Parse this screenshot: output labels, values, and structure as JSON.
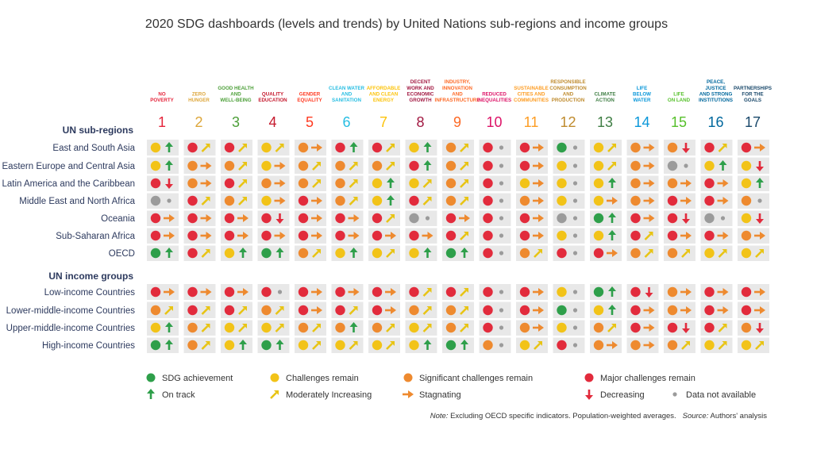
{
  "title": "2020 SDG dashboards (levels and trends) by United Nations sub-regions and income groups",
  "colors": {
    "green": "#2e9f4a",
    "yellow": "#f2c318",
    "orange": "#ee8a2f",
    "red": "#e22b3c",
    "grey": "#9b9b9b",
    "arrow_yellow": "#e8c414",
    "arrow_orange": "#ee8a2f",
    "band": "#e8e8e8"
  },
  "chart_data": {
    "type": "table",
    "title": "2020 SDG dashboards (levels and trends) by United Nations sub-regions and income groups",
    "goals": [
      {
        "num": "1",
        "label": [
          "NO",
          "POVERTY"
        ],
        "color": "#e5243b"
      },
      {
        "num": "2",
        "label": [
          "ZERO",
          "HUNGER"
        ],
        "color": "#dda63a"
      },
      {
        "num": "3",
        "label": [
          "GOOD HEALTH",
          "AND",
          "WELL-BEING"
        ],
        "color": "#4c9f38"
      },
      {
        "num": "4",
        "label": [
          "QUALITY",
          "EDUCATION"
        ],
        "color": "#c5192d"
      },
      {
        "num": "5",
        "label": [
          "GENDER",
          "EQUALITY"
        ],
        "color": "#ff3a21"
      },
      {
        "num": "6",
        "label": [
          "CLEAN WATER",
          "AND",
          "SANITATION"
        ],
        "color": "#26bde2"
      },
      {
        "num": "7",
        "label": [
          "AFFORDABLE",
          "AND CLEAN",
          "ENERGY"
        ],
        "color": "#fcc30b"
      },
      {
        "num": "8",
        "label": [
          "DECENT",
          "WORK AND",
          "ECONOMIC",
          "GROWTH"
        ],
        "color": "#a21942"
      },
      {
        "num": "9",
        "label": [
          "INDUSTRY,",
          "INNOVATION",
          "AND",
          "INFRASTRUCTURE"
        ],
        "color": "#fd6925"
      },
      {
        "num": "10",
        "label": [
          "REDUCED",
          "INEQUALITIES"
        ],
        "color": "#dd1367"
      },
      {
        "num": "11",
        "label": [
          "SUSTAINABLE",
          "CITIES AND",
          "COMMUNITIES"
        ],
        "color": "#fd9d24"
      },
      {
        "num": "12",
        "label": [
          "RESPONSIBLE",
          "CONSUMPTION",
          "AND",
          "PRODUCTION"
        ],
        "color": "#bf8b2e"
      },
      {
        "num": "13",
        "label": [
          "CLIMATE",
          "ACTION"
        ],
        "color": "#3f7e44"
      },
      {
        "num": "14",
        "label": [
          "LIFE",
          "BELOW",
          "WATER"
        ],
        "color": "#0a97d9"
      },
      {
        "num": "15",
        "label": [
          "LIFE",
          "ON LAND"
        ],
        "color": "#56c02b"
      },
      {
        "num": "16",
        "label": [
          "PEACE,",
          "JUSTICE",
          "AND STRONG",
          "INSTITUTIONS"
        ],
        "color": "#00689d"
      },
      {
        "num": "17",
        "label": [
          "PARTNERSHIPS",
          "FOR THE",
          "GOALS"
        ],
        "color": "#19486a"
      }
    ],
    "sections": [
      {
        "title": "UN sub-regions",
        "rows": [
          {
            "label": "East and South Asia",
            "cells": [
              "yu",
              "rm",
              "rm",
              "ym",
              "os",
              "ru",
              "rm",
              "yu",
              "om",
              "rn",
              "rs",
              "gn",
              "ym",
              "os",
              "od",
              "rm",
              "rs"
            ]
          },
          {
            "label": "Eastern Europe and Central Asia",
            "cells": [
              "yu",
              "os",
              "om",
              "ys",
              "om",
              "om",
              "om",
              "ru",
              "om",
              "rn",
              "rs",
              "yn",
              "ym",
              "os",
              "xn",
              "yu",
              "yd"
            ]
          },
          {
            "label": "Latin America and the Caribbean",
            "cells": [
              "rd",
              "os",
              "rm",
              "os",
              "om",
              "om",
              "yu",
              "ym",
              "om",
              "rn",
              "ys",
              "yn",
              "yu",
              "os",
              "os",
              "rs",
              "yu"
            ]
          },
          {
            "label": "Middle East and North Africa",
            "cells": [
              "xn",
              "rm",
              "om",
              "ys",
              "rs",
              "om",
              "yu",
              "rm",
              "om",
              "rn",
              "os",
              "yn",
              "ys",
              "os",
              "rs",
              "rs",
              "on"
            ]
          },
          {
            "label": "Oceania",
            "cells": [
              "rs",
              "rs",
              "rs",
              "rd",
              "rs",
              "rs",
              "rm",
              "xn",
              "rs",
              "rn",
              "rs",
              "xn",
              "gu",
              "rs",
              "rd",
              "xn",
              "yd"
            ]
          },
          {
            "label": "Sub-Saharan Africa",
            "cells": [
              "rs",
              "rs",
              "rs",
              "rs",
              "rs",
              "rs",
              "rs",
              "rs",
              "rm",
              "rn",
              "rs",
              "yn",
              "yu",
              "rm",
              "rs",
              "rs",
              "os"
            ]
          },
          {
            "label": "OECD",
            "cells": [
              "gu",
              "rm",
              "yu",
              "gu",
              "om",
              "yu",
              "ym",
              "yu",
              "gu",
              "rn",
              "om",
              "rn",
              "rs",
              "om",
              "om",
              "ym",
              "ym"
            ]
          }
        ]
      },
      {
        "title": "UN income groups",
        "rows": [
          {
            "label": "Low-income Countries",
            "cells": [
              "rs",
              "rs",
              "rs",
              "rn",
              "rs",
              "rs",
              "rs",
              "rm",
              "rm",
              "rn",
              "rs",
              "yn",
              "gu",
              "rd",
              "os",
              "rs",
              "rs"
            ]
          },
          {
            "label": "Lower-middle-income Countries",
            "cells": [
              "om",
              "rm",
              "rm",
              "om",
              "rs",
              "rm",
              "rs",
              "om",
              "om",
              "rn",
              "rs",
              "gn",
              "yu",
              "rs",
              "os",
              "rs",
              "rs"
            ]
          },
          {
            "label": "Upper-middle-income Countries",
            "cells": [
              "yu",
              "om",
              "ym",
              "ym",
              "om",
              "ou",
              "om",
              "ym",
              "om",
              "rn",
              "os",
              "yn",
              "om",
              "rs",
              "rd",
              "rm",
              "od"
            ]
          },
          {
            "label": "High-income Countries",
            "cells": [
              "gu",
              "om",
              "yu",
              "gu",
              "ym",
              "ym",
              "ym",
              "yu",
              "gu",
              "on",
              "ym",
              "rn",
              "os",
              "os",
              "om",
              "ym",
              "ym"
            ]
          }
        ]
      }
    ],
    "legend": [
      {
        "key": "g",
        "label": "SDG achievement",
        "kind": "dot"
      },
      {
        "key": "y",
        "label": "Challenges remain",
        "kind": "dot"
      },
      {
        "key": "o",
        "label": "Significant challenges remain",
        "kind": "dot"
      },
      {
        "key": "r",
        "label": "Major challenges remain",
        "kind": "dot"
      },
      {
        "key": "u",
        "label": "On track",
        "kind": "arrow"
      },
      {
        "key": "m",
        "label": "Moderately Increasing",
        "kind": "arrow"
      },
      {
        "key": "s",
        "label": "Stagnating",
        "kind": "arrow"
      },
      {
        "key": "d",
        "label": "Decreasing",
        "kind": "arrow"
      },
      {
        "key": "n",
        "label": "Data not available",
        "kind": "dot"
      }
    ]
  },
  "note": {
    "note_label": "Note:",
    "note_text": "Excluding OECD specific indicators. Population-weighted averages.",
    "source_label": "Source:",
    "source_text": "Authors' analysis"
  }
}
